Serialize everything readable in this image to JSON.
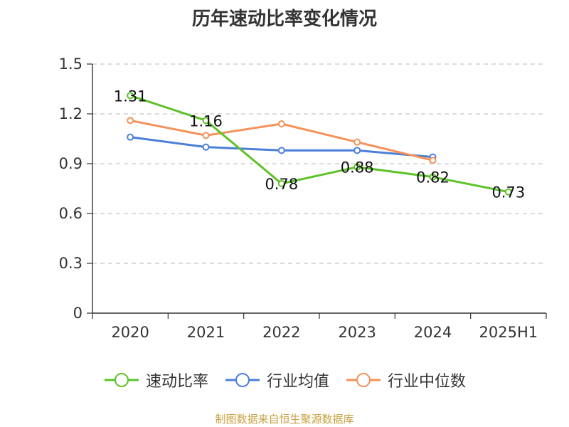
{
  "chart_data": {
    "type": "line",
    "title": "历年速动比率变化情况",
    "categories": [
      "2020",
      "2021",
      "2022",
      "2023",
      "2024",
      "2025H1"
    ],
    "ylim": [
      0,
      1.5
    ],
    "yticks": [
      "0",
      "0.3",
      "0.6",
      "0.9",
      "1.2",
      "1.5"
    ],
    "grid": true,
    "legend_position": "bottom",
    "series": [
      {
        "name": "速动比率",
        "color": "#5ec229",
        "values": [
          1.31,
          1.16,
          0.78,
          0.88,
          0.82,
          0.73
        ],
        "labels": [
          "1.31",
          "1.16",
          "0.78",
          "0.88",
          "0.82",
          "0.73"
        ]
      },
      {
        "name": "行业均值",
        "color": "#4c7fd8",
        "values": [
          1.06,
          1.0,
          0.98,
          0.98,
          0.94,
          null
        ]
      },
      {
        "name": "行业中位数",
        "color": "#f5925a",
        "values": [
          1.16,
          1.07,
          1.14,
          1.03,
          0.92,
          null
        ]
      }
    ]
  },
  "source_text": "制图数据来自恒生聚源数据库"
}
